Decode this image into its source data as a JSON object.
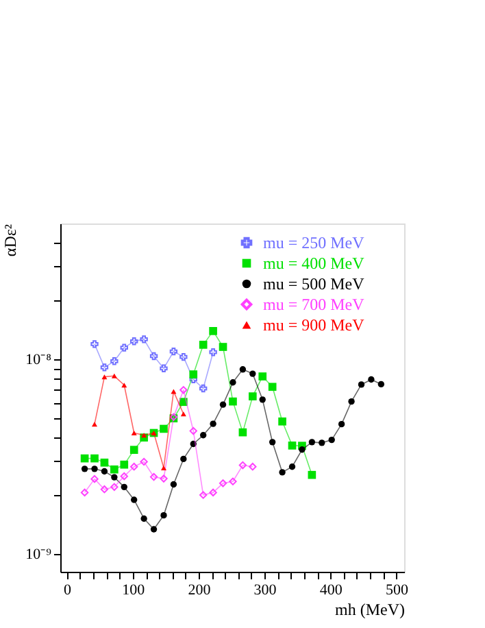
{
  "chart_data": {
    "type": "line",
    "xlabel": "mh (MeV)",
    "ylabel": "αDε²",
    "xlim": [
      -10,
      512
    ],
    "ylim": [
      8.1e-10,
      5e-08
    ],
    "log": "y",
    "grid": false,
    "legend": "top right",
    "xticks": [
      0,
      {
        "value": 20,
        "label": null
      },
      {
        "value": 40,
        "label": null
      },
      {
        "value": 60,
        "label": null
      },
      {
        "value": 80,
        "label": null
      },
      100,
      {
        "value": 120,
        "label": null
      },
      {
        "value": 140,
        "label": null
      },
      {
        "value": 160,
        "label": null
      },
      {
        "value": 180,
        "label": null
      },
      200,
      {
        "value": 220,
        "label": null
      },
      {
        "value": 240,
        "label": null
      },
      {
        "value": 260,
        "label": null
      },
      {
        "value": 280,
        "label": null
      },
      300,
      {
        "value": 320,
        "label": null
      },
      {
        "value": 340,
        "label": null
      },
      {
        "value": 360,
        "label": null
      },
      {
        "value": 380,
        "label": null
      },
      400,
      {
        "value": 420,
        "label": null
      },
      {
        "value": 440,
        "label": null
      },
      {
        "value": 460,
        "label": null
      },
      {
        "value": 480,
        "label": null
      },
      500
    ],
    "yticks": [
      {
        "value": 1e-09,
        "label": "10⁻⁹"
      },
      {
        "value": 2e-09,
        "label": null
      },
      {
        "value": 3e-09,
        "label": null
      },
      {
        "value": 4e-09,
        "label": null
      },
      {
        "value": 5e-09,
        "label": null
      },
      {
        "value": 6e-09,
        "label": null
      },
      {
        "value": 7e-09,
        "label": null
      },
      {
        "value": 8e-09,
        "label": null
      },
      {
        "value": 9e-09,
        "label": null
      },
      {
        "value": 1e-08,
        "label": "10⁻⁸"
      },
      {
        "value": 2e-08,
        "label": null
      },
      {
        "value": 3e-08,
        "label": null
      },
      {
        "value": 4e-08,
        "label": null
      }
    ],
    "series": [
      {
        "name": "mu = 250 MeV",
        "color": "#7070ff",
        "marker": "cross",
        "x": [
          42,
          57,
          72,
          87,
          102,
          117,
          132,
          147,
          162,
          177,
          192,
          207,
          222
        ],
        "values": [
          1.2e-08,
          9.1e-09,
          9.8e-09,
          1.15e-08,
          1.24e-08,
          1.27e-08,
          1.04e-08,
          9e-09,
          1.1e-08,
          1.03e-08,
          7.9e-09,
          7.1e-09,
          1.09e-08
        ]
      },
      {
        "name": "mu = 400 MeV",
        "color": "#00e000",
        "marker": "square",
        "x": [
          27,
          42,
          57,
          72,
          87,
          102,
          117,
          132,
          147,
          162,
          177,
          192,
          207,
          222,
          237,
          252,
          267,
          282,
          297,
          312,
          327,
          342,
          357,
          372
        ],
        "values": [
          3.1e-09,
          3.1e-09,
          2.95e-09,
          2.72e-09,
          2.88e-09,
          3.43e-09,
          3.97e-09,
          4.19e-09,
          4.4e-09,
          4.98e-09,
          6.05e-09,
          8.38e-09,
          1.19e-08,
          1.4e-08,
          1.16e-08,
          6.08e-09,
          4.22e-09,
          6.46e-09,
          8.18e-09,
          7.23e-09,
          4.8e-09,
          3.61e-09,
          3.6e-09,
          2.55e-09
        ]
      },
      {
        "name": "mu = 500 MeV",
        "color": "#000000",
        "marker": "circle",
        "x": [
          27,
          42,
          57,
          72,
          87,
          102,
          117,
          132,
          147,
          162,
          177,
          192,
          207,
          222,
          237,
          252,
          267,
          282,
          297,
          312,
          327,
          342,
          357,
          372,
          387,
          402,
          417,
          432,
          447,
          462,
          477
        ],
        "values": [
          2.74e-09,
          2.74e-09,
          2.66e-09,
          2.48e-09,
          2.21e-09,
          1.9e-09,
          1.52e-09,
          1.34e-09,
          1.58e-09,
          2.28e-09,
          3.08e-09,
          3.68e-09,
          4.08e-09,
          4.67e-09,
          5.86e-09,
          7.62e-09,
          8.89e-09,
          8.45e-09,
          6.22e-09,
          3.76e-09,
          2.63e-09,
          2.81e-09,
          3.44e-09,
          3.76e-09,
          3.73e-09,
          3.86e-09,
          4.65e-09,
          6.08e-09,
          7.43e-09,
          7.89e-09,
          7.46e-09
        ]
      },
      {
        "name": "mu = 700 MeV",
        "color": "#ff40ff",
        "marker": "diamond",
        "x": [
          27,
          42,
          57,
          72,
          87,
          102,
          117,
          132,
          147,
          162,
          177,
          192,
          207,
          222,
          237,
          252,
          267,
          282
        ],
        "values": [
          2.07e-09,
          2.43e-09,
          2.15e-09,
          2.21e-09,
          2.51e-09,
          2.81e-09,
          2.98e-09,
          2.49e-09,
          2.44e-09,
          5.06e-09,
          6.97e-09,
          4.29e-09,
          2.01e-09,
          2.07e-09,
          2.31e-09,
          2.36e-09,
          2.86e-09,
          2.81e-09
        ]
      },
      {
        "name": "mu = 900 MeV",
        "color": "#ff0000",
        "marker": "triangle",
        "x": [
          42,
          57,
          72,
          87,
          102,
          117,
          132,
          147,
          162,
          177
        ],
        "values": [
          4.65e-09,
          8.14e-09,
          8.23e-09,
          7.38e-09,
          4.19e-09,
          4.08e-09,
          4.19e-09,
          2.77e-09,
          6.85e-09,
          5.25e-09
        ]
      }
    ]
  }
}
